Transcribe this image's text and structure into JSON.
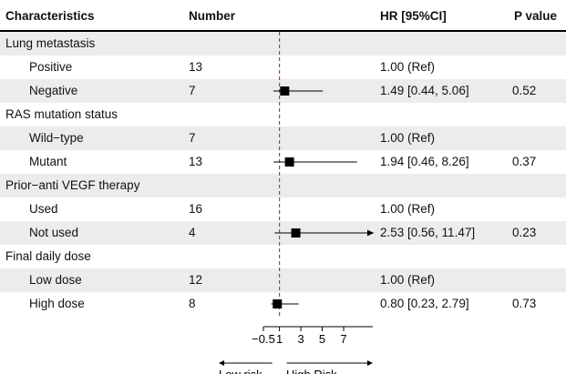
{
  "headers": {
    "characteristics": "Characteristics",
    "number": "Number",
    "hr": "HR [95%CI]",
    "p": "P value"
  },
  "rows": [
    {
      "label": "Lung metastasis",
      "group": true
    },
    {
      "label": "Positive",
      "n": "13",
      "hr_text": "1.00 (Ref)",
      "p": ""
    },
    {
      "label": "Negative",
      "n": "7",
      "hr_text": "1.49 [0.44, 5.06]",
      "p": "0.52"
    },
    {
      "label": "RAS mutation status",
      "group": true
    },
    {
      "label": "Wild−type",
      "n": "7",
      "hr_text": "1.00 (Ref)",
      "p": ""
    },
    {
      "label": "Mutant",
      "n": "13",
      "hr_text": "1.94 [0.46, 8.26]",
      "p": "0.37"
    },
    {
      "label": "Prior−anti VEGF therapy",
      "group": true
    },
    {
      "label": "Used",
      "n": "16",
      "hr_text": "1.00 (Ref)",
      "p": ""
    },
    {
      "label": "Not used",
      "n": "4",
      "hr_text": "2.53 [0.56, 11.47]",
      "p": "0.23"
    },
    {
      "label": "Final daily dose",
      "group": true
    },
    {
      "label": "Low dose",
      "n": "12",
      "hr_text": "1.00 (Ref)",
      "p": ""
    },
    {
      "label": "High dose",
      "n": "8",
      "hr_text": "0.80 [0.23, 2.79]",
      "p": "0.73"
    }
  ],
  "chart_data": {
    "type": "forest",
    "reference_line": 1,
    "xlim": [
      -0.5,
      7
    ],
    "xticks": [
      -0.5,
      1,
      3,
      5,
      7
    ],
    "tick_labels": [
      "−0.5",
      "1",
      "3",
      "5",
      "7"
    ],
    "risk_labels": {
      "low": "Low risk",
      "high": "High Risk"
    },
    "estimates": [
      {
        "row": 2,
        "hr": 1.49,
        "lower": 0.44,
        "upper": 5.06
      },
      {
        "row": 5,
        "hr": 1.94,
        "lower": 0.46,
        "upper": 8.26,
        "clipped": true
      },
      {
        "row": 8,
        "hr": 2.53,
        "lower": 0.56,
        "upper": 11.47,
        "clipped": true,
        "arrow": true
      },
      {
        "row": 11,
        "hr": 0.8,
        "lower": 0.23,
        "upper": 2.79
      }
    ]
  },
  "colors": {
    "stripe": "#ececec",
    "reference_line": "#c0392b",
    "marker": "#000000"
  }
}
